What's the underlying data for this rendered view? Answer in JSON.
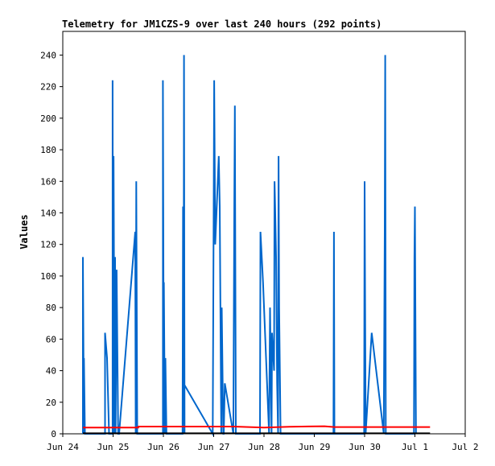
{
  "chart_data": {
    "type": "line",
    "title": "Telemetry for JM1CZS-9 over last 240 hours (292 points)",
    "xlabel": "",
    "ylabel": "Values",
    "ylim": [
      0,
      255
    ],
    "y_ticks": [
      0,
      20,
      40,
      60,
      80,
      100,
      120,
      140,
      160,
      180,
      200,
      220,
      240
    ],
    "xlim_days": [
      0,
      8
    ],
    "x_ticks": [
      {
        "day": 0,
        "label": "Jun 24"
      },
      {
        "day": 1,
        "label": "Jun 25"
      },
      {
        "day": 2,
        "label": "Jun 26"
      },
      {
        "day": 3,
        "label": "Jun 27"
      },
      {
        "day": 4,
        "label": "Jun 28"
      },
      {
        "day": 5,
        "label": "Jun 29"
      },
      {
        "day": 6,
        "label": "Jun 30"
      },
      {
        "day": 7,
        "label": "Jul 1"
      },
      {
        "day": 8,
        "label": "Jul 2"
      }
    ],
    "grid": false,
    "series": [
      {
        "color": "#0066cc",
        "points": [
          [
            0.4,
            0
          ],
          [
            0.4,
            112
          ],
          [
            0.42,
            0
          ],
          [
            0.42,
            48
          ],
          [
            0.44,
            0
          ],
          [
            0.84,
            0
          ],
          [
            0.84,
            64
          ],
          [
            0.88,
            48
          ],
          [
            0.92,
            0
          ],
          [
            0.99,
            0
          ],
          [
            0.99,
            224
          ],
          [
            1.0,
            0
          ],
          [
            1.01,
            176
          ],
          [
            1.03,
            0
          ],
          [
            1.04,
            112
          ],
          [
            1.05,
            0
          ],
          [
            1.07,
            104
          ],
          [
            1.1,
            0
          ],
          [
            1.12,
            0
          ],
          [
            1.44,
            128
          ],
          [
            1.45,
            0
          ],
          [
            1.46,
            160
          ],
          [
            1.48,
            0
          ],
          [
            1.99,
            0
          ],
          [
            1.99,
            224
          ],
          [
            2.01,
            0
          ],
          [
            2.01,
            96
          ],
          [
            2.03,
            0
          ],
          [
            2.04,
            48
          ],
          [
            2.06,
            0
          ],
          [
            2.38,
            0
          ],
          [
            2.39,
            144
          ],
          [
            2.4,
            0
          ],
          [
            2.41,
            240
          ],
          [
            2.42,
            0
          ],
          [
            2.4,
            32
          ],
          [
            2.98,
            0
          ],
          [
            3.0,
            144
          ],
          [
            3.01,
            224
          ],
          [
            3.03,
            120
          ],
          [
            3.06,
            144
          ],
          [
            3.1,
            176
          ],
          [
            3.12,
            144
          ],
          [
            3.15,
            0
          ],
          [
            3.16,
            80
          ],
          [
            3.19,
            0
          ],
          [
            3.2,
            0
          ],
          [
            3.22,
            32
          ],
          [
            3.39,
            0
          ],
          [
            3.41,
            144
          ],
          [
            3.42,
            208
          ],
          [
            3.44,
            0
          ],
          [
            3.92,
            0
          ],
          [
            3.93,
            128
          ],
          [
            3.98,
            96
          ],
          [
            4.1,
            0
          ],
          [
            4.12,
            80
          ],
          [
            4.15,
            0
          ],
          [
            4.16,
            64
          ],
          [
            4.2,
            40
          ],
          [
            4.21,
            160
          ],
          [
            4.22,
            144
          ],
          [
            4.24,
            112
          ],
          [
            4.26,
            32
          ],
          [
            4.28,
            0
          ],
          [
            4.29,
            176
          ],
          [
            4.3,
            80
          ],
          [
            4.33,
            0
          ],
          [
            5.38,
            0
          ],
          [
            5.39,
            128
          ],
          [
            5.4,
            0
          ],
          [
            5.99,
            0
          ],
          [
            6.0,
            160
          ],
          [
            6.02,
            0
          ],
          [
            6.14,
            64
          ],
          [
            6.38,
            0
          ],
          [
            6.4,
            128
          ],
          [
            6.41,
            240
          ],
          [
            6.42,
            0
          ],
          [
            6.98,
            0
          ],
          [
            6.99,
            112
          ],
          [
            7.0,
            144
          ],
          [
            7.02,
            0
          ]
        ]
      },
      {
        "color": "#ff0000",
        "points": [
          [
            0.4,
            4
          ],
          [
            1.5,
            4
          ],
          [
            1.5,
            4.6
          ],
          [
            3.4,
            4.6
          ],
          [
            4.0,
            4.0
          ],
          [
            4.5,
            4.5
          ],
          [
            5.2,
            4.8
          ],
          [
            5.4,
            4.3
          ],
          [
            7.3,
            4.3
          ]
        ]
      },
      {
        "color": "#000000",
        "points": [
          [
            0.4,
            0.3
          ],
          [
            7.3,
            0.3
          ]
        ]
      }
    ]
  }
}
